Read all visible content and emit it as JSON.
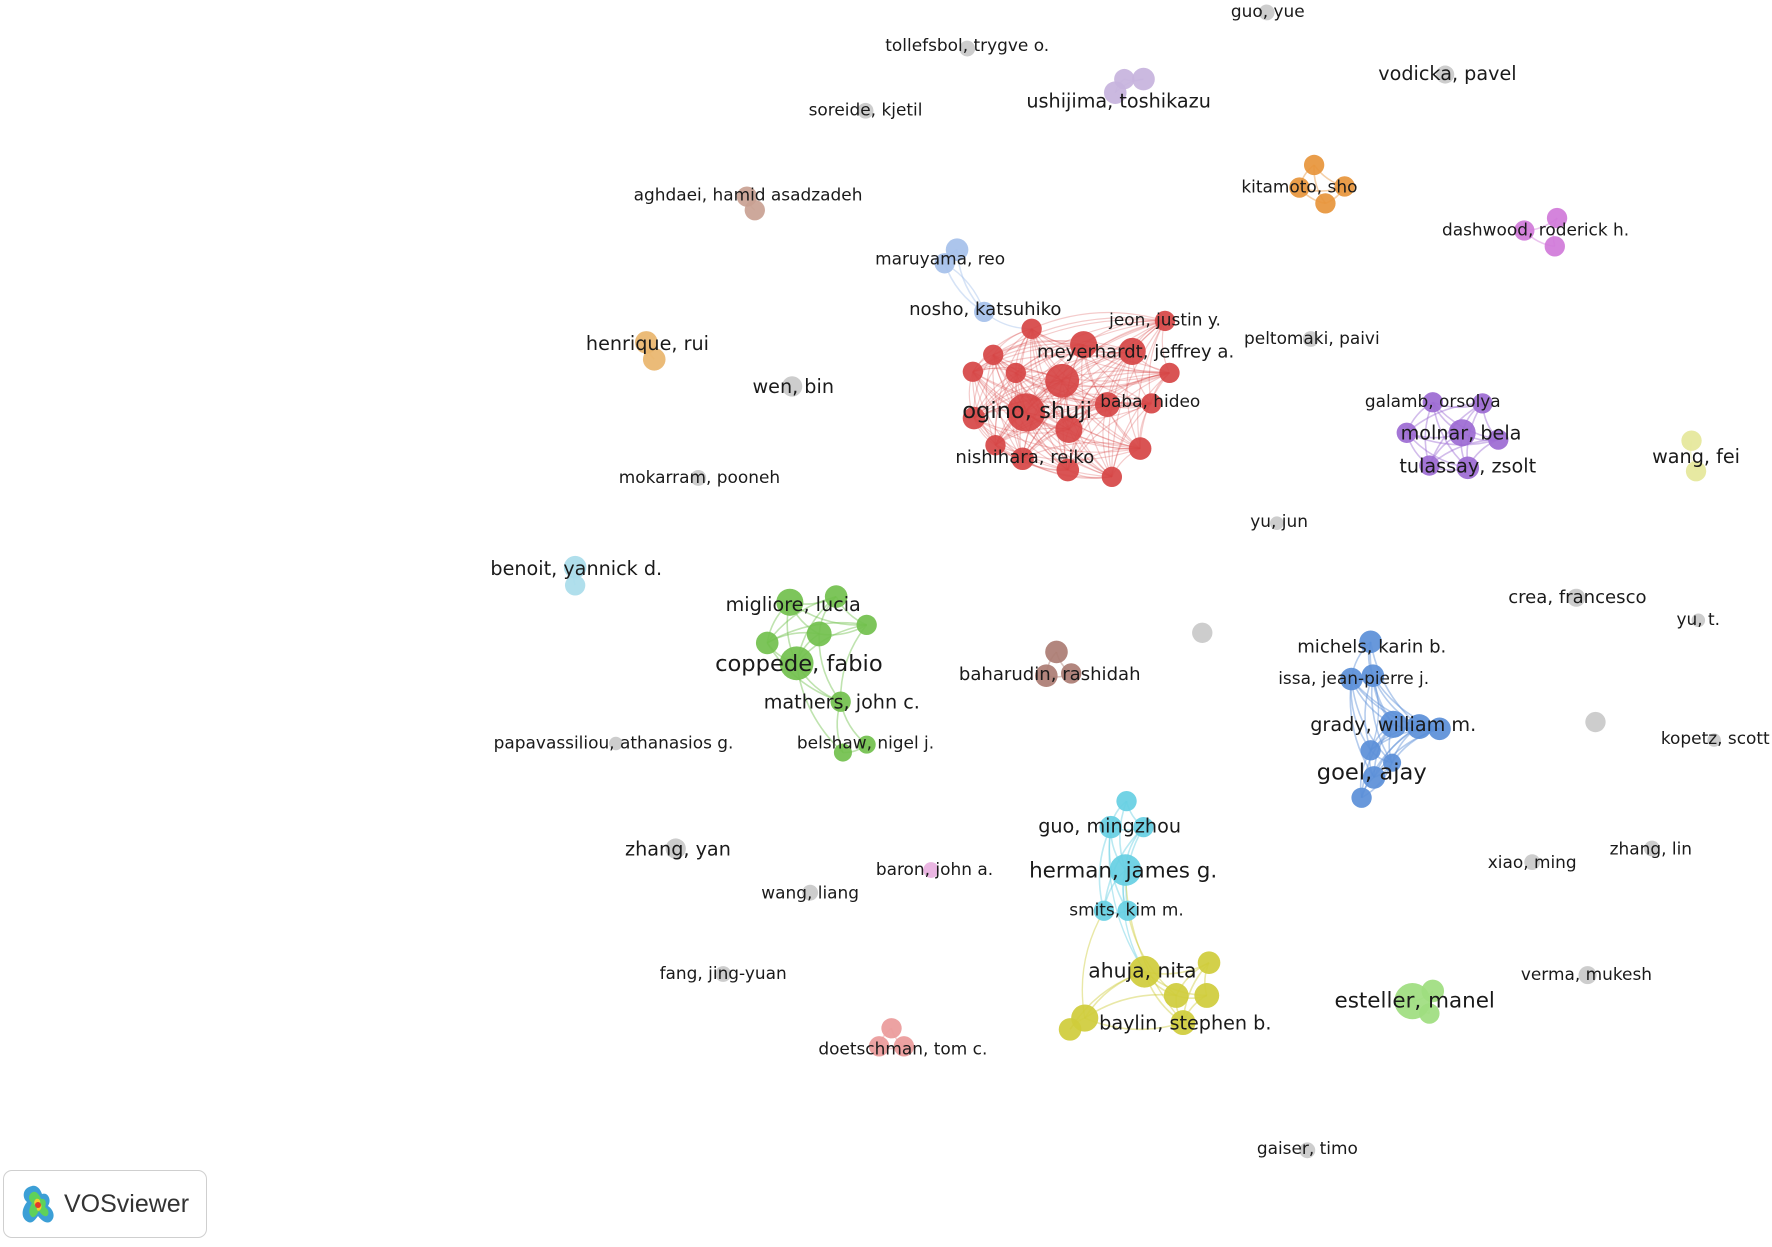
{
  "colors": {
    "red": "#d64545",
    "green": "#72c04d",
    "blue": "#5b8fd8",
    "yellow": "#cfcc3b",
    "cyan": "#66cfe3",
    "purple": "#9c6ad2",
    "lavender": "#c7b3dd",
    "orange": "#e7953b",
    "magenta": "#d07ad9",
    "mauve": "#c9a192",
    "lightblue": "#a5c0ea",
    "tan": "#e9b56c",
    "brown": "#ab7c73",
    "pink": "#e8b0df",
    "salmon": "#ea9a9a",
    "lightgreen": "#9edd7f",
    "paleyellow": "#e5e79a",
    "skyblue": "#a9dcea",
    "gray": "#c9c9c9"
  },
  "chart_data": {
    "type": "network",
    "clusters": [
      {
        "color": "red",
        "nodes": [
          "ogino, shuji",
          "meyerhardt, jeffrey a.",
          "jeon, justin y.",
          "baba, hideo",
          "nishihara, reiko"
        ]
      },
      {
        "color": "green",
        "nodes": [
          "migliore, lucia",
          "coppede, fabio",
          "mathers, john c.",
          "belshaw, nigel j."
        ]
      },
      {
        "color": "blue",
        "nodes": [
          "michels, karin b.",
          "issa, jean-pierre j.",
          "grady, william m.",
          "goel, ajay"
        ]
      },
      {
        "color": "cyan",
        "nodes": [
          "guo, mingzhou",
          "herman, james g.",
          "smits, kim m."
        ]
      },
      {
        "color": "yellow",
        "nodes": [
          "ahuja, nita",
          "baylin, stephen b."
        ]
      },
      {
        "color": "purple",
        "nodes": [
          "galamb, orsolya",
          "molnar, bela",
          "tulassay, zsolt"
        ]
      },
      {
        "color": "lightblue",
        "nodes": [
          "maruyama, reo",
          "nosho, katsuhiko"
        ]
      }
    ],
    "labels": [
      "guo, yue",
      "tollefsbol, trygve o.",
      "vodicka, pavel",
      "ushijima, toshikazu",
      "soreide, kjetil",
      "aghdaei, hamid asadzadeh",
      "kitamoto, sho",
      "dashwood, roderick h.",
      "maruyama, reo",
      "nosho, katsuhiko",
      "jeon, justin y.",
      "henrique, rui",
      "peltomaki, paivi",
      "meyerhardt, jeffrey a.",
      "wen, bin",
      "baba, hideo",
      "galamb, orsolya",
      "ogino, shuji",
      "molnar, bela",
      "wang, fei",
      "nishihara, reiko",
      "tulassay, zsolt",
      "mokarram, pooneh",
      "yu, jun",
      "benoit, yannick d.",
      "crea, francesco",
      "migliore, lucia",
      "yu, t.",
      "michels, karin b.",
      "coppede, fabio",
      "baharudin, rashidah",
      "issa, jean-pierre j.",
      "mathers, john c.",
      "grady, william m.",
      "papavassiliou, athanasios g.",
      "belshaw, nigel j.",
      "kopetz, scott",
      "goel, ajay",
      "guo, mingzhou",
      "zhang, yan",
      "zhang, lin",
      "baron, john a.",
      "herman, james g.",
      "xiao, ming",
      "wang, liang",
      "smits, kim m.",
      "fang, jing-yuan",
      "ahuja, nita",
      "verma, mukesh",
      "esteller, manel",
      "baylin, stephen b.",
      "doetschman, tom c.",
      "gaiser, timo"
    ]
  },
  "brand": {
    "name": "VOSviewer",
    "logo_icon": "vosviewer-logo-icon"
  }
}
